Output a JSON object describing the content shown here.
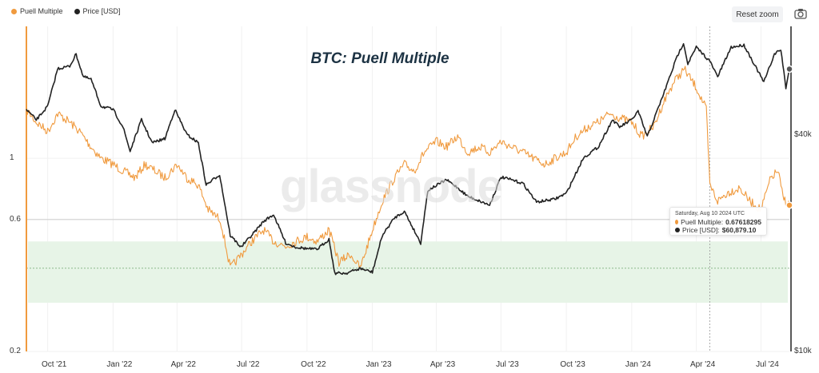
{
  "legend": [
    {
      "label": "Puell Multiple",
      "color": "#f09a3e"
    },
    {
      "label": "Price [USD]",
      "color": "#222222"
    }
  ],
  "toolbar": {
    "reset_zoom": "Reset zoom",
    "camera_icon": "camera-icon"
  },
  "watermark": "glassnode",
  "colors": {
    "puell": "#f09a3e",
    "price": "#222222",
    "band_fill": "#e7f4e7",
    "accent_axis": "#f09a3e"
  },
  "tooltip": {
    "date": "Saturday, Aug 10 2024 UTC",
    "puell_label": "Puell Multiple:",
    "puell_value": "0.67618295",
    "price_label": "Price [USD]:",
    "price_value": "$60,879.10"
  },
  "chart_data": {
    "type": "line",
    "title": "BTC: Puell Multiple",
    "x_range": [
      "2021-09-01",
      "2024-08-10"
    ],
    "x_ticks": [
      "Oct '21",
      "Jan '22",
      "Apr '22",
      "Jul '22",
      "Oct '22",
      "Jan '23",
      "Apr '23",
      "Jul '23",
      "Oct '23",
      "Jan '24",
      "Apr '24",
      "Jul '24"
    ],
    "left_axis": {
      "scale": "log",
      "ticks": [
        "1",
        "0.6",
        "0.2"
      ],
      "tick_values": [
        1,
        0.6,
        0.2
      ],
      "range": [
        0.2,
        3.0
      ]
    },
    "right_axis": {
      "scale": "log",
      "ticks": [
        "$40k",
        "$10k"
      ],
      "tick_values": [
        40000,
        10000
      ],
      "range": [
        10000,
        80000
      ]
    },
    "band": {
      "from": 0.3,
      "to": 0.5
    },
    "reference_lines": [
      0.6,
      0.4
    ],
    "series": [
      {
        "name": "Puell Multiple",
        "axis": "left",
        "points": [
          [
            "2021-09-01",
            1.5
          ],
          [
            "2021-09-15",
            1.35
          ],
          [
            "2021-10-01",
            1.25
          ],
          [
            "2021-10-15",
            1.45
          ],
          [
            "2021-11-01",
            1.35
          ],
          [
            "2021-11-15",
            1.25
          ],
          [
            "2021-12-01",
            1.1
          ],
          [
            "2021-12-15",
            1.0
          ],
          [
            "2022-01-01",
            0.95
          ],
          [
            "2022-01-15",
            0.9
          ],
          [
            "2022-02-01",
            0.85
          ],
          [
            "2022-02-15",
            0.95
          ],
          [
            "2022-03-01",
            0.9
          ],
          [
            "2022-03-15",
            0.85
          ],
          [
            "2022-04-01",
            0.95
          ],
          [
            "2022-04-15",
            0.85
          ],
          [
            "2022-05-01",
            0.8
          ],
          [
            "2022-05-15",
            0.65
          ],
          [
            "2022-06-01",
            0.6
          ],
          [
            "2022-06-15",
            0.4
          ],
          [
            "2022-07-01",
            0.45
          ],
          [
            "2022-07-15",
            0.5
          ],
          [
            "2022-08-01",
            0.55
          ],
          [
            "2022-08-15",
            0.5
          ],
          [
            "2022-09-01",
            0.48
          ],
          [
            "2022-09-15",
            0.5
          ],
          [
            "2022-10-01",
            0.52
          ],
          [
            "2022-10-15",
            0.5
          ],
          [
            "2022-11-01",
            0.55
          ],
          [
            "2022-11-15",
            0.42
          ],
          [
            "2022-12-01",
            0.45
          ],
          [
            "2022-12-15",
            0.4
          ],
          [
            "2023-01-01",
            0.55
          ],
          [
            "2023-01-15",
            0.7
          ],
          [
            "2023-02-01",
            0.85
          ],
          [
            "2023-02-15",
            0.95
          ],
          [
            "2023-03-01",
            0.9
          ],
          [
            "2023-03-15",
            1.05
          ],
          [
            "2023-04-01",
            1.15
          ],
          [
            "2023-04-15",
            1.1
          ],
          [
            "2023-05-01",
            1.2
          ],
          [
            "2023-05-15",
            1.05
          ],
          [
            "2023-06-01",
            1.1
          ],
          [
            "2023-06-15",
            1.05
          ],
          [
            "2023-07-01",
            1.15
          ],
          [
            "2023-07-15",
            1.1
          ],
          [
            "2023-08-01",
            1.05
          ],
          [
            "2023-08-15",
            1.0
          ],
          [
            "2023-09-01",
            0.95
          ],
          [
            "2023-09-15",
            1.0
          ],
          [
            "2023-10-01",
            1.05
          ],
          [
            "2023-10-15",
            1.2
          ],
          [
            "2023-11-01",
            1.3
          ],
          [
            "2023-11-15",
            1.35
          ],
          [
            "2023-12-01",
            1.45
          ],
          [
            "2023-12-15",
            1.4
          ],
          [
            "2024-01-01",
            1.35
          ],
          [
            "2024-01-15",
            1.2
          ],
          [
            "2024-02-01",
            1.3
          ],
          [
            "2024-02-15",
            1.6
          ],
          [
            "2024-03-01",
            1.9
          ],
          [
            "2024-03-15",
            2.1
          ],
          [
            "2024-04-01",
            1.8
          ],
          [
            "2024-04-15",
            1.5
          ],
          [
            "2024-04-20",
            0.8
          ],
          [
            "2024-05-01",
            0.7
          ],
          [
            "2024-05-15",
            0.75
          ],
          [
            "2024-06-01",
            0.78
          ],
          [
            "2024-06-15",
            0.7
          ],
          [
            "2024-07-01",
            0.65
          ],
          [
            "2024-07-15",
            0.85
          ],
          [
            "2024-07-25",
            0.9
          ],
          [
            "2024-08-01",
            0.72
          ],
          [
            "2024-08-10",
            0.676
          ]
        ]
      },
      {
        "name": "Price [USD]",
        "axis": "right",
        "points": [
          [
            "2021-09-01",
            47000
          ],
          [
            "2021-09-15",
            44000
          ],
          [
            "2021-10-01",
            48000
          ],
          [
            "2021-10-15",
            61000
          ],
          [
            "2021-11-01",
            62000
          ],
          [
            "2021-11-10",
            67000
          ],
          [
            "2021-11-20",
            58000
          ],
          [
            "2021-12-01",
            57000
          ],
          [
            "2021-12-15",
            48000
          ],
          [
            "2022-01-01",
            47000
          ],
          [
            "2022-01-15",
            42000
          ],
          [
            "2022-01-25",
            36000
          ],
          [
            "2022-02-10",
            44000
          ],
          [
            "2022-02-25",
            38000
          ],
          [
            "2022-03-15",
            39000
          ],
          [
            "2022-03-29",
            47000
          ],
          [
            "2022-04-15",
            40000
          ],
          [
            "2022-05-01",
            38000
          ],
          [
            "2022-05-12",
            29000
          ],
          [
            "2022-05-31",
            31000
          ],
          [
            "2022-06-15",
            21000
          ],
          [
            "2022-06-30",
            19500
          ],
          [
            "2022-07-15",
            21000
          ],
          [
            "2022-08-01",
            23000
          ],
          [
            "2022-08-15",
            24000
          ],
          [
            "2022-09-01",
            20000
          ],
          [
            "2022-09-15",
            19500
          ],
          [
            "2022-10-01",
            19300
          ],
          [
            "2022-10-15",
            19200
          ],
          [
            "2022-11-01",
            20500
          ],
          [
            "2022-11-09",
            16500
          ],
          [
            "2022-11-25",
            16500
          ],
          [
            "2022-12-15",
            17000
          ],
          [
            "2023-01-01",
            16600
          ],
          [
            "2023-01-15",
            21000
          ],
          [
            "2023-02-01",
            23500
          ],
          [
            "2023-02-15",
            24500
          ],
          [
            "2023-03-10",
            20000
          ],
          [
            "2023-03-20",
            28000
          ],
          [
            "2023-04-15",
            30000
          ],
          [
            "2023-05-01",
            28500
          ],
          [
            "2023-05-15",
            27000
          ],
          [
            "2023-06-15",
            25500
          ],
          [
            "2023-07-01",
            30500
          ],
          [
            "2023-07-15",
            30000
          ],
          [
            "2023-08-01",
            29300
          ],
          [
            "2023-08-20",
            26000
          ],
          [
            "2023-09-15",
            26500
          ],
          [
            "2023-10-01",
            27500
          ],
          [
            "2023-10-25",
            34500
          ],
          [
            "2023-11-15",
            37000
          ],
          [
            "2023-12-05",
            44000
          ],
          [
            "2023-12-15",
            42000
          ],
          [
            "2024-01-01",
            44000
          ],
          [
            "2024-01-10",
            46500
          ],
          [
            "2024-01-23",
            39500
          ],
          [
            "2024-02-15",
            52000
          ],
          [
            "2024-03-05",
            66000
          ],
          [
            "2024-03-14",
            72000
          ],
          [
            "2024-03-20",
            63000
          ],
          [
            "2024-04-01",
            70000
          ],
          [
            "2024-04-20",
            64000
          ],
          [
            "2024-05-01",
            58000
          ],
          [
            "2024-05-20",
            70000
          ],
          [
            "2024-06-07",
            71000
          ],
          [
            "2024-06-25",
            61000
          ],
          [
            "2024-07-05",
            56000
          ],
          [
            "2024-07-20",
            67000
          ],
          [
            "2024-07-29",
            69000
          ],
          [
            "2024-08-05",
            54000
          ],
          [
            "2024-08-10",
            60879.1
          ]
        ]
      }
    ]
  }
}
